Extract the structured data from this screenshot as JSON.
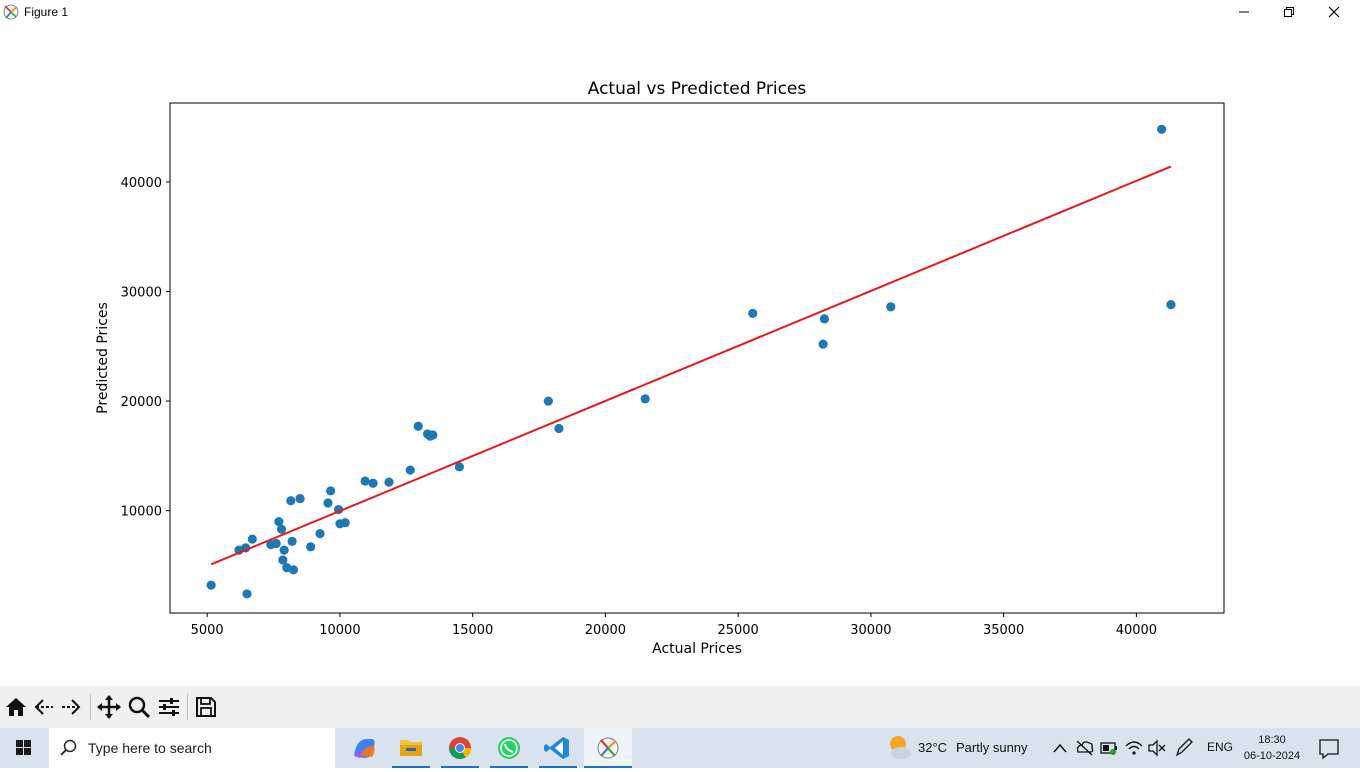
{
  "window": {
    "title": "Figure 1"
  },
  "chart_data": {
    "type": "scatter",
    "title": "Actual vs Predicted Prices",
    "xlabel": "Actual Prices",
    "ylabel": "Predicted Prices",
    "xlim": [
      3600,
      43300
    ],
    "ylim": [
      660,
      47200
    ],
    "xticks": [
      5000,
      10000,
      15000,
      20000,
      25000,
      30000,
      35000,
      40000
    ],
    "yticks": [
      10000,
      20000,
      30000,
      40000
    ],
    "xtick_labels": [
      "5000",
      "10000",
      "15000",
      "20000",
      "25000",
      "30000",
      "35000",
      "40000"
    ],
    "ytick_labels": [
      "10000",
      "20000",
      "30000",
      "40000"
    ],
    "grid": false,
    "point_color": "#1f77b4",
    "line_color": "#e41a1c",
    "points": [
      [
        5150,
        3200
      ],
      [
        6200,
        6400
      ],
      [
        6450,
        6600
      ],
      [
        6700,
        7400
      ],
      [
        6500,
        2400
      ],
      [
        7400,
        6900
      ],
      [
        7600,
        7000
      ],
      [
        7700,
        9000
      ],
      [
        7800,
        8300
      ],
      [
        7850,
        5500
      ],
      [
        7900,
        6400
      ],
      [
        8000,
        4800
      ],
      [
        8150,
        10900
      ],
      [
        8200,
        7200
      ],
      [
        8250,
        4600
      ],
      [
        8500,
        11100
      ],
      [
        8900,
        6700
      ],
      [
        9250,
        7900
      ],
      [
        9550,
        10700
      ],
      [
        9650,
        11800
      ],
      [
        9950,
        10100
      ],
      [
        10000,
        8800
      ],
      [
        10200,
        8900
      ],
      [
        10950,
        12700
      ],
      [
        11250,
        12500
      ],
      [
        11850,
        12600
      ],
      [
        12650,
        13700
      ],
      [
        12950,
        17700
      ],
      [
        13300,
        17000
      ],
      [
        13400,
        16800
      ],
      [
        13500,
        16900
      ],
      [
        14500,
        14000
      ],
      [
        17850,
        20000
      ],
      [
        18250,
        17500
      ],
      [
        21500,
        20200
      ],
      [
        25550,
        28000
      ],
      [
        28200,
        25200
      ],
      [
        28250,
        27500
      ],
      [
        30750,
        28600
      ],
      [
        40950,
        44800
      ],
      [
        41300,
        28800
      ]
    ],
    "fit_line": [
      [
        5150,
        5100
      ],
      [
        41300,
        41400
      ]
    ]
  },
  "toolbar": {
    "buttons": [
      "home-icon",
      "back-icon",
      "forward-icon",
      "pan-icon",
      "zoom-icon",
      "configure-icon",
      "save-icon"
    ]
  },
  "taskbar": {
    "search_placeholder": "Type here to search",
    "weather_temp": "32°C",
    "weather_desc": "Partly sunny",
    "language": "ENG",
    "time": "18:30",
    "date": "06-10-2024"
  }
}
